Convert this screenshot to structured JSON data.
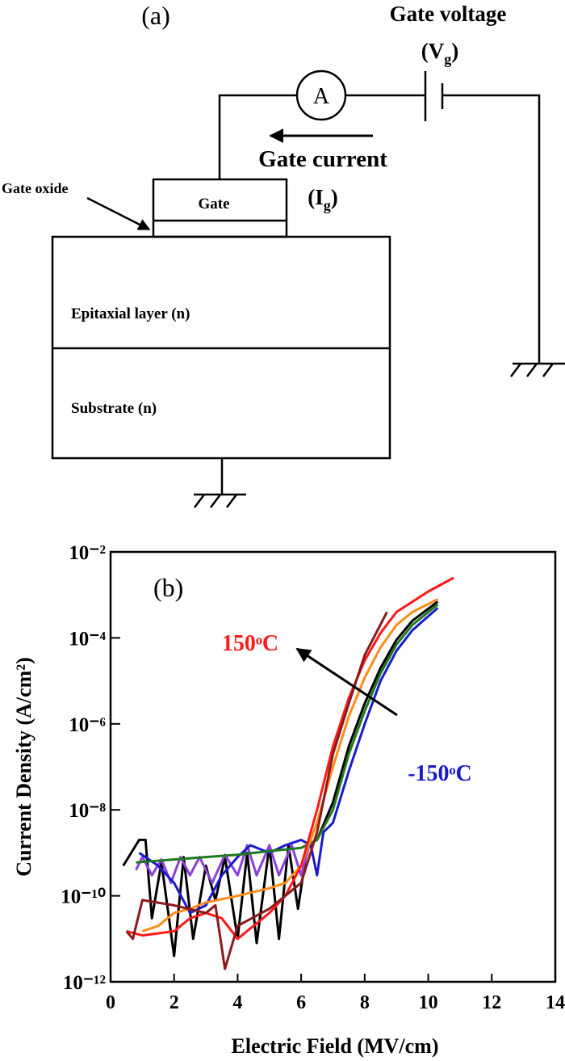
{
  "diagram": {
    "panel_label": "(a)",
    "gate_voltage_label": "Gate voltage",
    "gate_voltage_symbol": {
      "base": "(V",
      "sub": "g",
      "end": ")"
    },
    "ammeter_label": "A",
    "gate_current_label": "Gate current",
    "gate_current_symbol": {
      "base": "(I",
      "sub": "g",
      "end": ")"
    },
    "gate_oxide_label": "Gate oxide",
    "gate_label": "Gate",
    "epitaxial_label": "Epitaxial layer (n)",
    "substrate_label": "Substrate (n)"
  },
  "chart_data": {
    "type": "line",
    "panel_label": "(b)",
    "x_label": "Electric Field  (MV/cm)",
    "y_label": "Current Density  (A/cm²)",
    "yscale": "log",
    "xlim": [
      0,
      14
    ],
    "xticks": [
      0,
      2,
      4,
      6,
      8,
      10,
      12,
      14
    ],
    "ylim": [
      1e-12,
      0.01
    ],
    "yticks": [
      {
        "value": 1e-12,
        "label": "10⁻¹²"
      },
      {
        "value": 1e-10,
        "label": "10⁻¹⁰"
      },
      {
        "value": 1e-08,
        "label": "10⁻⁸"
      },
      {
        "value": 1e-06,
        "label": "10⁻⁶"
      },
      {
        "value": 0.0001,
        "label": "10⁻⁴"
      },
      {
        "value": 0.01,
        "label": "10⁻²"
      }
    ],
    "annotations": [
      {
        "text": "150ᵒC",
        "color": "#ff1a1a"
      },
      {
        "text": "-150ᵒC",
        "color": "#1a1acc"
      }
    ],
    "series": [
      {
        "color": "#000000",
        "x": [
          0.4,
          0.9,
          1.1,
          1.3,
          1.6,
          2.0,
          2.3,
          2.6,
          3.0,
          3.3,
          3.6,
          4.0,
          4.3,
          4.6,
          5.0,
          5.3,
          5.6,
          5.9,
          6.2,
          6.5,
          7.0,
          7.5,
          8.0,
          8.5,
          9.0,
          9.5,
          10.3
        ],
        "values": [
          5e-10,
          2e-09,
          2e-09,
          3e-11,
          6e-10,
          4e-12,
          8e-10,
          1e-11,
          5e-10,
          8e-11,
          8e-10,
          1e-11,
          1e-09,
          8e-12,
          1.5e-09,
          1e-11,
          1.5e-09,
          5e-11,
          1.5e-09,
          2e-09,
          1.5e-08,
          3e-07,
          3e-06,
          2e-05,
          9e-05,
          0.00025,
          0.0007
        ]
      },
      {
        "color": "#8c3fd9",
        "x": [
          0.8,
          1.0,
          1.3,
          1.6,
          1.9,
          2.2,
          2.5,
          2.8,
          3.2,
          3.6,
          4.0,
          4.3,
          4.6,
          5.0,
          5.3,
          5.7,
          6.0,
          6.3
        ],
        "values": [
          4e-10,
          8e-10,
          3e-10,
          7e-10,
          2e-10,
          8e-10,
          3e-10,
          8e-10,
          2e-10,
          9e-10,
          3e-10,
          1.5e-09,
          3e-10,
          1.5e-09,
          3e-10,
          1.5e-09,
          3e-10,
          2e-09
        ]
      },
      {
        "color": "#1a1acc",
        "x": [
          0.9,
          1.5,
          2.0,
          2.5,
          3.0,
          3.5,
          4.0,
          4.4,
          5.0,
          5.5,
          6.0,
          6.3,
          6.5,
          6.7,
          7.0,
          7.5,
          8.0,
          8.5,
          9.0,
          9.5,
          10.3
        ],
        "values": [
          1e-09,
          5e-10,
          2e-10,
          4e-11,
          6e-11,
          3e-10,
          8e-10,
          1.5e-09,
          1e-09,
          1.5e-09,
          2e-09,
          1.5e-09,
          3e-10,
          3e-09,
          5e-09,
          8e-08,
          1e-06,
          1e-05,
          5e-05,
          0.00015,
          0.0005
        ]
      },
      {
        "color": "#1f7a1f",
        "x": [
          0.8,
          2.0,
          3.0,
          4.0,
          5.0,
          6.0,
          6.5,
          7.0,
          7.5,
          8.0,
          8.5,
          9.0,
          9.5,
          10.3
        ],
        "values": [
          6e-10,
          7e-10,
          8e-10,
          9e-10,
          1.1e-09,
          1.3e-09,
          2e-09,
          1e-08,
          2e-07,
          2e-06,
          1.5e-05,
          7e-05,
          0.0002,
          0.0006
        ]
      },
      {
        "color": "#ff8c1a",
        "x": [
          1.0,
          1.5,
          2.0,
          2.5,
          3.0,
          4.0,
          5.0,
          5.5,
          6.0,
          6.5,
          7.0,
          7.5,
          8.0,
          8.5,
          9.0,
          9.5,
          10.3
        ],
        "values": [
          1.5e-11,
          2e-11,
          4e-11,
          5e-11,
          7e-11,
          1e-10,
          1.5e-10,
          2e-10,
          5e-10,
          5e-09,
          1e-07,
          1.5e-06,
          1.2e-05,
          6e-05,
          0.0002,
          0.0004,
          0.0008
        ]
      },
      {
        "color": "#ff1a1a",
        "x": [
          0.5,
          1.0,
          2.0,
          2.5,
          3.0,
          3.5,
          4.0,
          4.5,
          5.0,
          5.5,
          6.0,
          6.5,
          7.0,
          7.5,
          8.0,
          8.5,
          9.0,
          10.0,
          10.8
        ],
        "values": [
          1.5e-11,
          1.2e-11,
          1.5e-11,
          3e-11,
          4e-11,
          3e-11,
          1e-11,
          2e-11,
          4e-11,
          1e-10,
          5e-10,
          1e-08,
          3e-07,
          4e-06,
          3e-05,
          0.00013,
          0.0004,
          0.0012,
          0.0025
        ]
      },
      {
        "color": "#8b1a1a",
        "x": [
          0.5,
          0.7,
          1.0,
          2.0,
          3.0,
          3.3,
          3.6,
          4.0,
          5.0,
          6.0,
          6.5,
          7.0,
          7.5,
          8.0,
          8.7
        ],
        "values": [
          1.5e-11,
          1e-11,
          8e-11,
          6e-11,
          4e-11,
          6e-11,
          2e-12,
          2e-11,
          5e-11,
          2e-10,
          3e-09,
          2e-07,
          3e-06,
          4e-05,
          0.0004
        ]
      }
    ]
  }
}
